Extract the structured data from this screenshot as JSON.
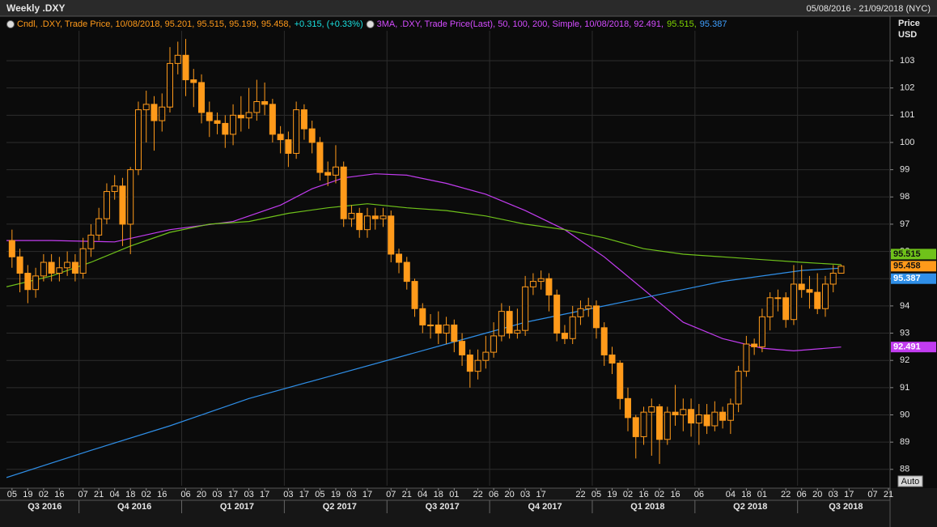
{
  "chart_data": {
    "type": "candlestick",
    "title": "Weekly .DXY",
    "subtitle": "05/08/2016 - 21/09/2018 (NYC)",
    "legend": [
      [
        {
          "text": "Cndl, .DXY, Trade Price, 10/08/2018, 95.201, 95.515, 95.199, 95.458,",
          "color": "#ff9a1a"
        },
        {
          "text": "+0.315, (+0.33%)",
          "color": "#19e0e0"
        }
      ],
      [
        {
          "text": "3MA, .DXY, Trade Price(Last), 50, 100, 200, Simple, 10/08/2018, 92.491,",
          "color": "#d44cff"
        },
        {
          "text": "95.515,",
          "color": "#7fd400"
        },
        {
          "text": "95.387",
          "color": "#3fa0ff"
        }
      ]
    ],
    "y_axis_label": [
      "Price",
      "USD"
    ],
    "auto_button": "Auto",
    "up_color": "#ff9a1a",
    "down_color": "#ff9a1a",
    "grid": true,
    "xlim": [
      -0.7,
      111.2
    ],
    "ylim": [
      87.4,
      104.1
    ],
    "yticks": [
      88,
      89,
      90,
      91,
      92,
      93,
      94,
      95,
      96,
      97,
      98,
      99,
      100,
      101,
      102,
      103
    ],
    "xticks": [
      {
        "value": 0,
        "label": "05"
      },
      {
        "value": 2,
        "label": "19"
      },
      {
        "value": 4,
        "label": "02"
      },
      {
        "value": 6,
        "label": "16"
      },
      {
        "value": 9,
        "label": "07"
      },
      {
        "value": 11,
        "label": "21"
      },
      {
        "value": 13,
        "label": "04"
      },
      {
        "value": 15,
        "label": "18"
      },
      {
        "value": 17,
        "label": "02"
      },
      {
        "value": 19,
        "label": "16"
      },
      {
        "value": 22,
        "label": "06"
      },
      {
        "value": 24,
        "label": "20"
      },
      {
        "value": 26,
        "label": "03"
      },
      {
        "value": 28,
        "label": "17"
      },
      {
        "value": 30,
        "label": "03"
      },
      {
        "value": 32,
        "label": "17"
      },
      {
        "value": 35,
        "label": "03"
      },
      {
        "value": 37,
        "label": "17"
      },
      {
        "value": 39,
        "label": "05"
      },
      {
        "value": 41,
        "label": "19"
      },
      {
        "value": 43,
        "label": "03"
      },
      {
        "value": 45,
        "label": "17"
      },
      {
        "value": 48,
        "label": "07"
      },
      {
        "value": 50,
        "label": "21"
      },
      {
        "value": 52,
        "label": "04"
      },
      {
        "value": 54,
        "label": "18"
      },
      {
        "value": 56,
        "label": "01"
      },
      {
        "value": 59,
        "label": "22"
      },
      {
        "value": 61,
        "label": "06"
      },
      {
        "value": 63,
        "label": "20"
      },
      {
        "value": 65,
        "label": "03"
      },
      {
        "value": 67,
        "label": "17"
      },
      {
        "value": 72,
        "label": "22"
      },
      {
        "value": 74,
        "label": "05"
      },
      {
        "value": 76,
        "label": "19"
      },
      {
        "value": 78,
        "label": "02"
      },
      {
        "value": 80,
        "label": "16"
      },
      {
        "value": 82,
        "label": "02"
      },
      {
        "value": 84,
        "label": "16"
      },
      {
        "value": 87,
        "label": "06"
      },
      {
        "value": 91,
        "label": "04"
      },
      {
        "value": 93,
        "label": "18"
      },
      {
        "value": 95,
        "label": "01"
      },
      {
        "value": 98,
        "label": "22"
      },
      {
        "value": 100,
        "label": "06"
      },
      {
        "value": 102,
        "label": "20"
      },
      {
        "value": 104,
        "label": "03"
      },
      {
        "value": 106,
        "label": "17"
      },
      {
        "value": 109,
        "label": "07"
      },
      {
        "value": 111,
        "label": "21"
      }
    ],
    "quarters": [
      {
        "value": -5,
        "label": "Q3 2016"
      },
      {
        "value": 9,
        "label": "Q4 2016"
      },
      {
        "value": 22,
        "label": "Q1 2017"
      },
      {
        "value": 35,
        "label": "Q2 2017"
      },
      {
        "value": 48,
        "label": "Q3 2017"
      },
      {
        "value": 61,
        "label": "Q4 2017"
      },
      {
        "value": 74,
        "label": "Q1 2018"
      },
      {
        "value": 87,
        "label": "Q2 2018"
      },
      {
        "value": 100,
        "label": "Q3 2018"
      }
    ],
    "open": [
      96.4,
      95.8,
      95.2,
      94.6,
      95.1,
      95.6,
      95.2,
      95.4,
      95.6,
      95.2,
      96.1,
      96.6,
      97.2,
      98.2,
      98.4,
      97.0,
      99.0,
      101.2,
      101.4,
      100.8,
      101.3,
      102.9,
      103.2,
      102.3,
      102.2,
      101.1,
      100.8,
      100.7,
      100.3,
      101.0,
      100.9,
      101.1,
      101.5,
      101.4,
      100.3,
      100.1,
      99.6,
      101.2,
      100.5,
      100.0,
      98.9,
      98.8,
      99.1,
      97.2,
      97.4,
      96.8,
      97.3,
      97.2,
      97.3,
      95.9,
      95.6,
      94.9,
      93.9,
      93.3,
      93.3,
      93.0,
      93.3,
      92.7,
      92.2,
      91.6,
      92.0,
      92.3,
      92.9,
      93.8,
      93.0,
      93.1,
      94.7,
      94.9,
      95.0,
      94.4,
      93.0,
      92.8,
      93.6,
      93.9,
      94.0,
      93.2,
      92.2,
      91.9,
      90.6,
      89.9,
      89.2,
      90.1,
      90.3,
      89.1,
      90.1,
      90.0,
      90.2,
      89.7,
      90.0,
      89.6,
      90.1,
      89.8,
      90.4,
      91.6,
      92.6,
      92.5,
      93.6,
      94.3,
      94.3,
      93.5,
      94.8,
      94.6,
      94.5,
      93.9,
      94.8,
      95.201
    ],
    "high": [
      96.8,
      96.1,
      95.5,
      95.4,
      95.9,
      95.9,
      95.8,
      96.0,
      95.9,
      96.5,
      97.0,
      97.6,
      98.5,
      98.8,
      98.7,
      99.1,
      101.5,
      101.9,
      101.7,
      101.8,
      103.5,
      103.7,
      103.8,
      102.7,
      102.5,
      101.5,
      101.1,
      101.0,
      101.4,
      101.7,
      102.0,
      102.3,
      102.2,
      101.6,
      100.6,
      100.4,
      101.5,
      101.4,
      100.8,
      100.2,
      99.3,
      99.9,
      99.3,
      97.7,
      97.6,
      97.6,
      97.6,
      97.6,
      97.5,
      96.1,
      95.8,
      95.0,
      94.1,
      93.7,
      93.8,
      93.6,
      93.5,
      93.0,
      92.4,
      92.4,
      92.9,
      93.4,
      94.1,
      94.0,
      93.9,
      95.1,
      95.2,
      95.3,
      95.2,
      94.6,
      93.3,
      94.0,
      94.2,
      94.3,
      94.2,
      93.4,
      92.5,
      92.0,
      91.0,
      90.0,
      90.3,
      90.6,
      90.4,
      90.3,
      91.1,
      90.6,
      90.6,
      90.4,
      90.4,
      90.5,
      90.3,
      90.6,
      91.8,
      92.9,
      92.8,
      93.9,
      94.5,
      94.6,
      94.5,
      95.5,
      95.5,
      95.1,
      95.2,
      95.1,
      95.5,
      95.515
    ],
    "low": [
      95.4,
      94.5,
      94.1,
      94.3,
      94.9,
      94.9,
      94.9,
      95.1,
      94.9,
      95.0,
      95.8,
      96.4,
      97.0,
      97.9,
      96.2,
      95.9,
      98.8,
      100.0,
      99.7,
      100.4,
      101.1,
      102.5,
      101.7,
      101.3,
      100.7,
      100.2,
      100.3,
      99.8,
      99.9,
      100.4,
      100.5,
      100.8,
      101.0,
      100.0,
      99.6,
      99.1,
      99.4,
      100.1,
      99.6,
      98.6,
      98.4,
      98.5,
      96.9,
      96.9,
      96.5,
      96.5,
      96.8,
      96.9,
      95.6,
      95.2,
      94.6,
      93.6,
      93.0,
      92.8,
      92.6,
      92.6,
      92.3,
      91.8,
      91.0,
      91.3,
      91.7,
      92.1,
      92.7,
      92.8,
      92.8,
      92.9,
      94.4,
      94.6,
      93.8,
      92.7,
      92.6,
      92.6,
      93.3,
      93.6,
      92.8,
      91.8,
      91.5,
      90.2,
      89.4,
      88.4,
      88.9,
      88.5,
      88.2,
      88.9,
      89.6,
      89.4,
      89.2,
      88.9,
      89.3,
      89.4,
      89.5,
      89.3,
      90.1,
      91.4,
      92.2,
      92.3,
      93.1,
      93.8,
      93.2,
      93.3,
      94.3,
      93.9,
      93.7,
      93.6,
      94.5,
      95.199
    ],
    "close": [
      95.8,
      95.2,
      94.6,
      95.1,
      95.6,
      95.2,
      95.4,
      95.6,
      95.2,
      96.1,
      96.6,
      97.2,
      98.2,
      98.4,
      97.0,
      99.0,
      101.2,
      101.4,
      100.8,
      101.3,
      102.9,
      103.2,
      102.3,
      102.2,
      101.1,
      100.8,
      100.7,
      100.3,
      101.0,
      100.9,
      101.1,
      101.5,
      101.4,
      100.3,
      100.1,
      99.6,
      101.2,
      100.5,
      100.0,
      98.9,
      98.8,
      99.1,
      97.2,
      97.4,
      96.8,
      97.3,
      97.2,
      97.3,
      95.9,
      95.6,
      94.9,
      93.9,
      93.3,
      93.3,
      93.0,
      93.3,
      92.7,
      92.2,
      91.6,
      92.0,
      92.3,
      92.9,
      93.8,
      93.0,
      93.1,
      94.7,
      94.9,
      95.0,
      94.4,
      93.0,
      92.8,
      93.6,
      93.9,
      94.0,
      93.2,
      92.2,
      91.9,
      90.6,
      89.9,
      89.2,
      90.1,
      90.3,
      89.1,
      90.1,
      90.0,
      90.2,
      89.7,
      90.0,
      89.6,
      90.1,
      89.8,
      90.4,
      91.6,
      92.6,
      92.5,
      93.6,
      94.3,
      94.3,
      93.5,
      94.8,
      94.6,
      94.5,
      93.9,
      94.8,
      95.201,
      95.458
    ],
    "moving_averages": [
      {
        "color": "#c23cf0",
        "x": [
          -0.7,
          5,
          13,
          20,
          28,
          34,
          38,
          42,
          46,
          50,
          55,
          60,
          65,
          70,
          75,
          80,
          85,
          90,
          95,
          99,
          105
        ],
        "values": [
          96.4,
          96.4,
          96.35,
          96.8,
          97.1,
          97.7,
          98.3,
          98.7,
          98.85,
          98.8,
          98.5,
          98.1,
          97.5,
          96.8,
          95.8,
          94.6,
          93.4,
          92.8,
          92.45,
          92.35,
          92.491
        ]
      },
      {
        "color": "#6fc21a",
        "x": [
          -0.7,
          5,
          10,
          15,
          20,
          25,
          30,
          35,
          40,
          45,
          50,
          55,
          60,
          65,
          70,
          75,
          80,
          85,
          90,
          95,
          100,
          105
        ],
        "values": [
          94.7,
          95.1,
          95.6,
          96.2,
          96.7,
          97.0,
          97.1,
          97.4,
          97.6,
          97.75,
          97.6,
          97.5,
          97.3,
          97.0,
          96.8,
          96.5,
          96.1,
          95.9,
          95.8,
          95.7,
          95.6,
          95.515
        ]
      },
      {
        "color": "#2f8fe8",
        "x": [
          -0.7,
          10,
          20,
          30,
          40,
          50,
          55,
          60,
          65,
          70,
          75,
          80,
          85,
          90,
          95,
          100,
          105
        ],
        "values": [
          87.7,
          88.7,
          89.6,
          90.6,
          91.4,
          92.2,
          92.6,
          93.0,
          93.4,
          93.7,
          94.0,
          94.3,
          94.6,
          94.9,
          95.1,
          95.3,
          95.387
        ]
      }
    ]
  }
}
